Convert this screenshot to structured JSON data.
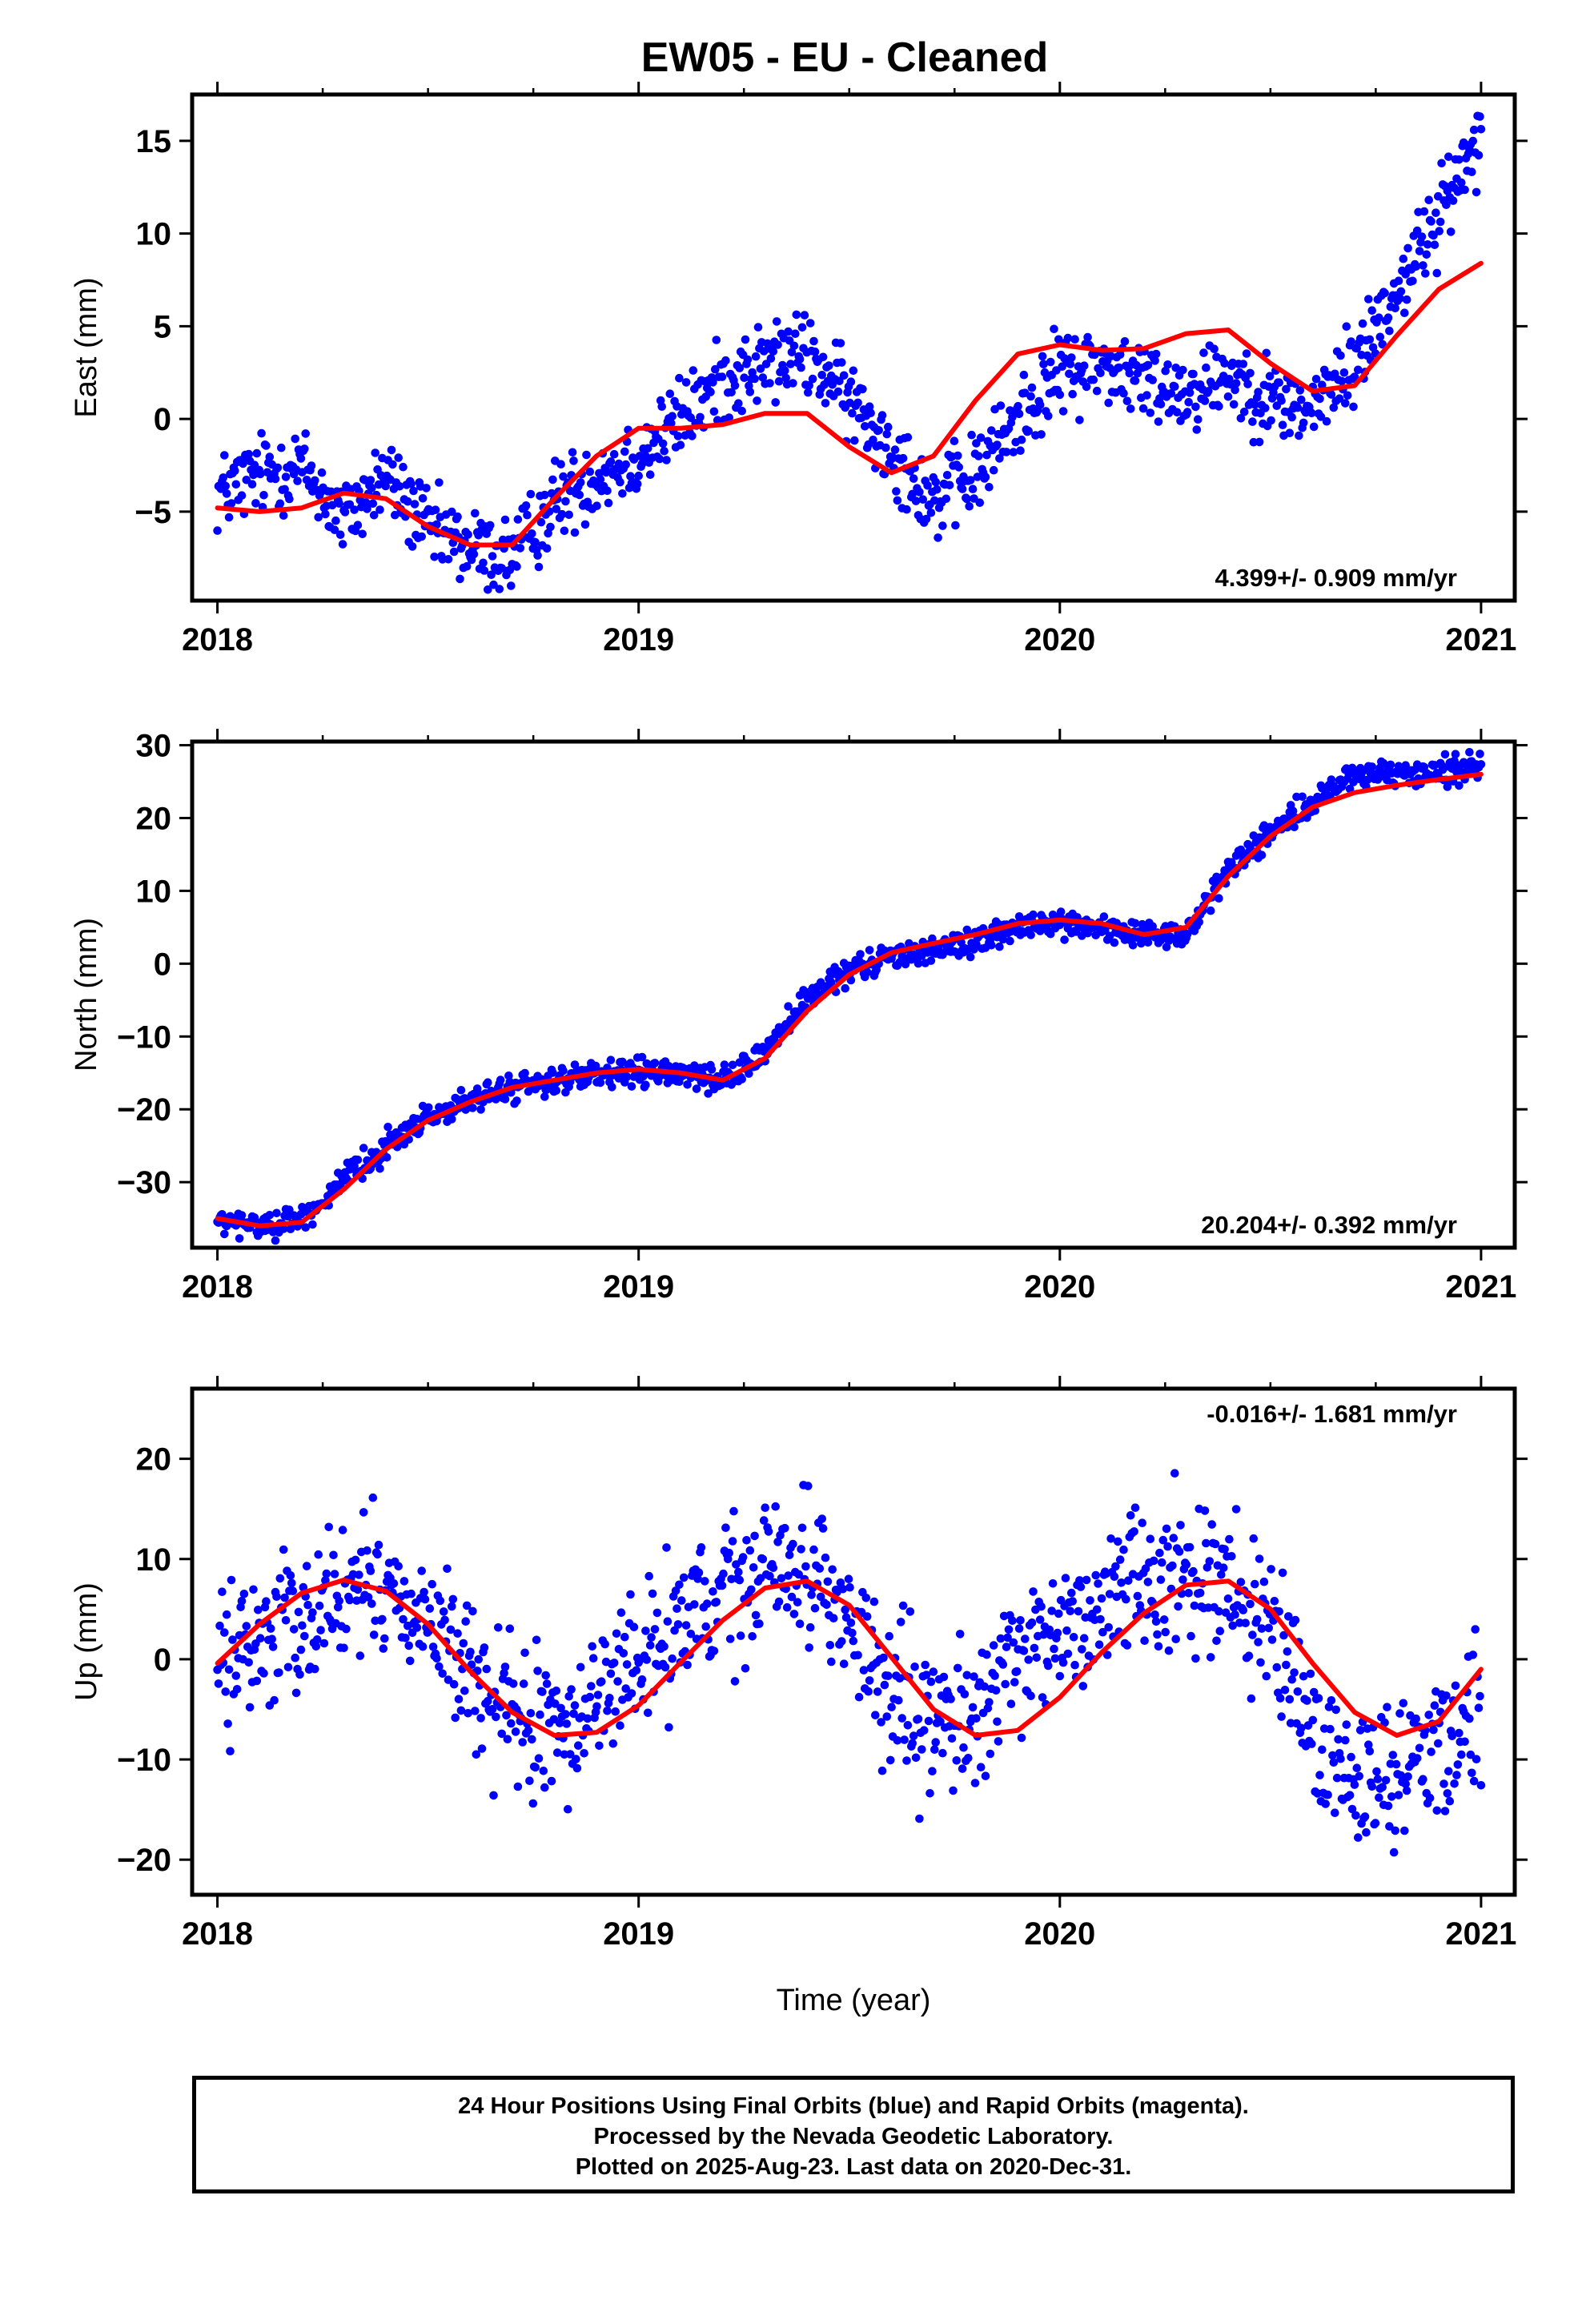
{
  "title": "EW05  - EU - Cleaned",
  "x_axis_label": "Time (year)",
  "footer": {
    "line1": "24 Hour Positions Using Final Orbits (blue) and Rapid Orbits (magenta).",
    "line2": "Processed by the Nevada Geodetic Laboratory.",
    "line3": "Plotted on 2025-Aug-23. Last data on 2020-Dec-31."
  },
  "colors": {
    "data_points": "#0000ff",
    "model_fit": "#ff0000",
    "frame": "#000000"
  },
  "chart_data": [
    {
      "type": "scatter",
      "ylabel": "East (mm)",
      "xlim": [
        2017.94,
        2021.08
      ],
      "ylim": [
        -9.8,
        17.5
      ],
      "xticks": [
        2018,
        2019,
        2020,
        2021
      ],
      "yticks": [
        -5,
        0,
        5,
        10,
        15
      ],
      "rate_label": "4.399+/- 0.909 mm/yr",
      "rate_position": "bottom-right",
      "grid": false,
      "series": [
        {
          "role": "observations",
          "x": [
            2018.0,
            2018.1,
            2018.2,
            2018.3,
            2018.4,
            2018.5,
            2018.6,
            2018.7,
            2018.8,
            2018.9,
            2019.0,
            2019.1,
            2019.2,
            2019.3,
            2019.4,
            2019.5,
            2019.6,
            2019.7,
            2019.8,
            2019.9,
            2020.0,
            2020.1,
            2020.2,
            2020.3,
            2020.4,
            2020.5,
            2020.6,
            2020.7,
            2020.8,
            2020.9,
            2021.0
          ],
          "y": [
            -4.0,
            -3.0,
            -2.5,
            -5.5,
            -3.0,
            -6.0,
            -7.0,
            -7.5,
            -4.5,
            -3.0,
            -2.0,
            0.0,
            2.0,
            3.0,
            3.5,
            1.0,
            -1.5,
            -4.5,
            -3.0,
            0.0,
            2.5,
            3.0,
            2.0,
            1.5,
            2.5,
            1.0,
            0.5,
            3.0,
            7.0,
            11.0,
            15.5
          ],
          "noise_sigma": 1.1
        },
        {
          "role": "model",
          "x": [
            2018.0,
            2018.1,
            2018.2,
            2018.3,
            2018.4,
            2018.5,
            2018.6,
            2018.7,
            2018.8,
            2018.9,
            2019.0,
            2019.1,
            2019.2,
            2019.3,
            2019.4,
            2019.5,
            2019.6,
            2019.7,
            2019.8,
            2019.9,
            2020.0,
            2020.1,
            2020.2,
            2020.3,
            2020.4,
            2020.5,
            2020.6,
            2020.7,
            2020.8,
            2020.9,
            2021.0
          ],
          "y": [
            -4.8,
            -5.0,
            -4.8,
            -4.0,
            -4.3,
            -5.8,
            -6.8,
            -6.8,
            -4.3,
            -2.0,
            -0.5,
            -0.5,
            -0.3,
            0.3,
            0.3,
            -1.5,
            -2.9,
            -2.0,
            1.0,
            3.5,
            4.0,
            3.7,
            3.8,
            4.6,
            4.8,
            3.0,
            1.5,
            1.8,
            4.5,
            7.0,
            8.4
          ]
        }
      ]
    },
    {
      "type": "scatter",
      "ylabel": "North (mm)",
      "xlim": [
        2017.94,
        2021.08
      ],
      "ylim": [
        -39.0,
        30.5
      ],
      "xticks": [
        2018,
        2019,
        2020,
        2021
      ],
      "yticks": [
        -30,
        -20,
        -10,
        0,
        10,
        20,
        30
      ],
      "rate_label": "20.204+/- 0.392 mm/yr",
      "rate_position": "bottom-right",
      "grid": false,
      "series": [
        {
          "role": "observations",
          "x": [
            2018.0,
            2018.1,
            2018.2,
            2018.3,
            2018.4,
            2018.5,
            2018.6,
            2018.7,
            2018.8,
            2018.9,
            2019.0,
            2019.1,
            2019.2,
            2019.3,
            2019.4,
            2019.5,
            2019.6,
            2019.7,
            2019.8,
            2019.9,
            2020.0,
            2020.1,
            2020.2,
            2020.3,
            2020.4,
            2020.5,
            2020.6,
            2020.7,
            2020.8,
            2020.9,
            2021.0
          ],
          "y": [
            -35.5,
            -36.0,
            -35.0,
            -30.0,
            -25.0,
            -21.0,
            -19.0,
            -17.0,
            -16.0,
            -15.5,
            -15.0,
            -15.0,
            -16.5,
            -12.0,
            -5.0,
            -1.0,
            1.0,
            2.0,
            3.0,
            5.0,
            5.5,
            5.0,
            3.5,
            4.0,
            13.0,
            18.0,
            22.0,
            26.0,
            25.5,
            26.5,
            27.5
          ],
          "noise_sigma": 0.9
        },
        {
          "role": "model",
          "x": [
            2018.0,
            2018.1,
            2018.2,
            2018.3,
            2018.4,
            2018.5,
            2018.6,
            2018.7,
            2018.8,
            2018.9,
            2019.0,
            2019.1,
            2019.2,
            2019.3,
            2019.4,
            2019.5,
            2019.6,
            2019.7,
            2019.8,
            2019.9,
            2020.0,
            2020.1,
            2020.2,
            2020.3,
            2020.4,
            2020.5,
            2020.6,
            2020.7,
            2020.8,
            2020.9,
            2021.0
          ],
          "y": [
            -35.0,
            -36.0,
            -35.5,
            -31.0,
            -25.5,
            -21.5,
            -19.0,
            -17.0,
            -16.0,
            -15.0,
            -14.5,
            -15.0,
            -16.0,
            -13.0,
            -6.5,
            -1.5,
            1.5,
            2.8,
            4.0,
            5.5,
            6.0,
            5.5,
            4.0,
            5.0,
            12.0,
            17.5,
            21.5,
            23.5,
            24.5,
            25.3,
            26.0
          ]
        }
      ]
    },
    {
      "type": "scatter",
      "ylabel": "Up (mm)",
      "xlim": [
        2017.94,
        2021.08
      ],
      "ylim": [
        -23.5,
        27.0
      ],
      "xticks": [
        2018,
        2019,
        2020,
        2021
      ],
      "yticks": [
        -20,
        -10,
        0,
        10,
        20
      ],
      "rate_label": "-0.016+/- 1.681 mm/yr",
      "rate_position": "top-right",
      "grid": false,
      "series": [
        {
          "role": "observations",
          "x": [
            2018.0,
            2018.1,
            2018.2,
            2018.3,
            2018.4,
            2018.5,
            2018.6,
            2018.7,
            2018.8,
            2018.9,
            2019.0,
            2019.1,
            2019.2,
            2019.3,
            2019.4,
            2019.5,
            2019.6,
            2019.7,
            2019.8,
            2019.9,
            2020.0,
            2020.1,
            2020.2,
            2020.3,
            2020.4,
            2020.5,
            2020.6,
            2020.7,
            2020.8,
            2020.9,
            2021.0
          ],
          "y": [
            -1.0,
            2.0,
            4.5,
            6.5,
            7.0,
            4.0,
            -2.0,
            -6.5,
            -7.5,
            -4.0,
            0.0,
            3.0,
            6.0,
            8.5,
            10.0,
            4.0,
            -4.5,
            -7.0,
            -5.0,
            -1.0,
            3.0,
            6.0,
            8.5,
            9.0,
            8.0,
            2.0,
            -8.0,
            -12.0,
            -11.0,
            -8.0,
            -4.0
          ],
          "noise_sigma": 3.6
        },
        {
          "role": "model",
          "x": [
            2018.0,
            2018.1,
            2018.2,
            2018.3,
            2018.4,
            2018.5,
            2018.6,
            2018.7,
            2018.8,
            2018.9,
            2019.0,
            2019.1,
            2019.2,
            2019.3,
            2019.4,
            2019.5,
            2019.6,
            2019.7,
            2019.8,
            2019.9,
            2020.0,
            2020.1,
            2020.2,
            2020.3,
            2020.4,
            2020.5,
            2020.6,
            2020.7,
            2020.8,
            2020.9,
            2021.0
          ],
          "y": [
            -0.4,
            3.5,
            6.6,
            7.9,
            6.8,
            3.5,
            -1.2,
            -5.3,
            -7.6,
            -7.3,
            -4.6,
            -0.3,
            3.9,
            7.1,
            7.8,
            5.4,
            0.2,
            -5.0,
            -7.6,
            -7.1,
            -3.8,
            0.7,
            4.6,
            7.4,
            7.8,
            5.0,
            -0.4,
            -5.3,
            -7.6,
            -6.2,
            -1.0
          ]
        }
      ]
    }
  ]
}
